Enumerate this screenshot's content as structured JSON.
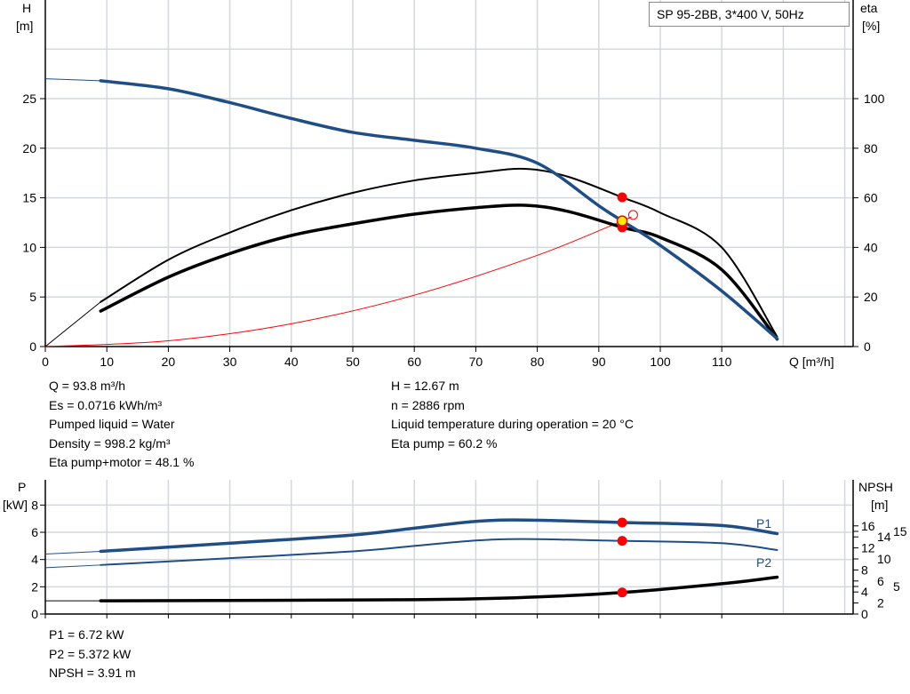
{
  "title_box": "SP 95-2BB, 3*400 V, 50Hz",
  "info_top": {
    "left": [
      "Q = 93.8 m³/h",
      "Es = 0.0716 kWh/m³",
      "Pumped liquid = Water",
      "Density = 998.2 kg/m³",
      "Eta pump+motor = 48.1 %"
    ],
    "right": [
      "H = 12.67 m",
      "n = 2886 rpm",
      "Liquid temperature during operation = 20 °C",
      "Eta pump = 60.2 %"
    ]
  },
  "info_bottom": [
    "P1 = 6.72 kW",
    "P2 = 5.372 kW",
    "NPSH = 3.91 m"
  ],
  "chart_data": [
    {
      "type": "line",
      "title": "",
      "xlabel": "Q [m³/h]",
      "ylabel": [
        "H",
        "[m]"
      ],
      "y2label": [
        "eta",
        "[%]"
      ],
      "xlim": [
        0,
        130
      ],
      "xticks": [
        0,
        10,
        20,
        30,
        40,
        50,
        60,
        70,
        80,
        90,
        100,
        110
      ],
      "ylim": [
        0,
        35
      ],
      "yticks": [
        0,
        5,
        10,
        15,
        20,
        25
      ],
      "y2lim": [
        0,
        140
      ],
      "y2ticks": [
        0,
        20,
        40,
        60,
        80,
        100
      ],
      "grid": true,
      "series": [
        {
          "id": "H",
          "axis": "left",
          "color": "#1f4e86",
          "x": [
            0,
            9,
            20,
            30,
            40,
            50,
            60,
            70,
            80,
            90,
            93.8,
            100,
            110,
            119
          ],
          "y": [
            27,
            26.8,
            26,
            24.6,
            23,
            21.6,
            20.8,
            20,
            18.5,
            14.2,
            12.67,
            10.2,
            5.6,
            0.8
          ]
        },
        {
          "id": "eta-pump",
          "axis": "right",
          "color": "#000000",
          "x": [
            0,
            9,
            20,
            30,
            40,
            50,
            60,
            70,
            78,
            85,
            93.8,
            100,
            110,
            119
          ],
          "y": [
            0,
            18,
            35,
            46,
            55,
            62,
            67,
            70,
            71.7,
            68.5,
            60.2,
            54,
            40,
            4
          ]
        },
        {
          "id": "eta-pump-motor",
          "axis": "right",
          "color": "#000000",
          "x": [
            9,
            20,
            30,
            40,
            50,
            60,
            70,
            78,
            85,
            93.8,
            100,
            110,
            119
          ],
          "y": [
            14.3,
            28,
            37.5,
            44.8,
            49.5,
            53.4,
            56,
            57,
            54.5,
            48.1,
            44,
            31,
            3
          ]
        },
        {
          "id": "system-curve",
          "axis": "left",
          "color": "#ff0000",
          "x": [
            0,
            20,
            40,
            60,
            80,
            93.8,
            95
          ],
          "y": [
            0,
            0.58,
            2.3,
            5.18,
            9.2,
            12.67,
            13
          ]
        }
      ],
      "operating_point": {
        "Q": 93.8,
        "H": 12.67,
        "eta_pump": 60.2,
        "eta_pump_motor": 48.1
      }
    },
    {
      "type": "line",
      "title": "",
      "ylabel": [
        "P",
        "[kW]"
      ],
      "y2label": [
        "NPSH",
        "[m]"
      ],
      "xlim": [
        0,
        130
      ],
      "ylim": [
        0,
        9
      ],
      "yticks": [
        0,
        2,
        4,
        6,
        8
      ],
      "y2ticks": [
        0,
        2,
        4,
        5,
        6,
        8,
        10,
        12,
        14,
        15,
        16
      ],
      "grid": true,
      "series": [
        {
          "id": "P1",
          "name": "P1",
          "axis": "left",
          "color": "#1f4e86",
          "x": [
            0,
            9,
            30,
            50,
            60,
            70,
            78,
            93.8,
            110,
            119
          ],
          "y": [
            4.4,
            4.6,
            5.2,
            5.8,
            6.3,
            6.8,
            6.9,
            6.72,
            6.5,
            5.9
          ]
        },
        {
          "id": "P2",
          "name": "P2",
          "axis": "left",
          "color": "#1f4e86",
          "x": [
            0,
            9,
            30,
            50,
            60,
            70,
            78,
            93.8,
            110,
            119
          ],
          "y": [
            3.4,
            3.6,
            4.1,
            4.6,
            5.0,
            5.4,
            5.5,
            5.37,
            5.2,
            4.7
          ]
        },
        {
          "id": "NPSH",
          "axis": "right",
          "color": "#000000",
          "x": [
            0,
            9,
            60,
            80,
            93.8,
            110,
            119
          ],
          "y": [
            2.4,
            2.4,
            2.6,
            3.1,
            3.91,
            5.5,
            6.7
          ]
        }
      ],
      "operating_point": {
        "Q": 93.8,
        "P1": 6.72,
        "P2": 5.372,
        "NPSH": 3.91
      }
    }
  ]
}
